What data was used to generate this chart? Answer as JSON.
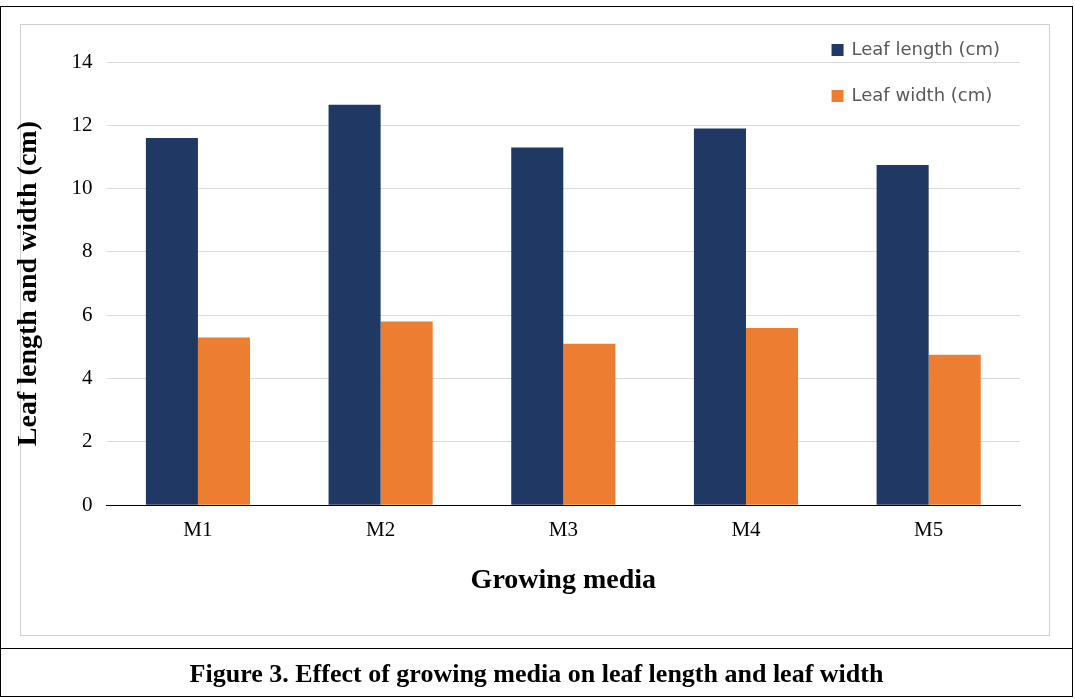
{
  "chart_data": {
    "type": "bar",
    "title": "Figure 3. Effect of growing media on leaf length and leaf width",
    "xlabel": "Growing media",
    "ylabel": "Leaf length and width (cm)",
    "categories": [
      "M1",
      "M2",
      "M3",
      "M4",
      "M5"
    ],
    "series": [
      {
        "name": "Leaf length (cm)",
        "color": "#203864",
        "values": [
          11.6,
          12.65,
          11.3,
          11.9,
          10.75
        ]
      },
      {
        "name": "Leaf width (cm)",
        "color": "#ed7d31",
        "values": [
          5.3,
          5.8,
          5.1,
          5.6,
          4.75
        ]
      }
    ],
    "ylim": [
      0,
      14
    ],
    "yticks": [
      0,
      2,
      4,
      6,
      8,
      10,
      12,
      14
    ],
    "grid": "y",
    "legend": "top right"
  }
}
